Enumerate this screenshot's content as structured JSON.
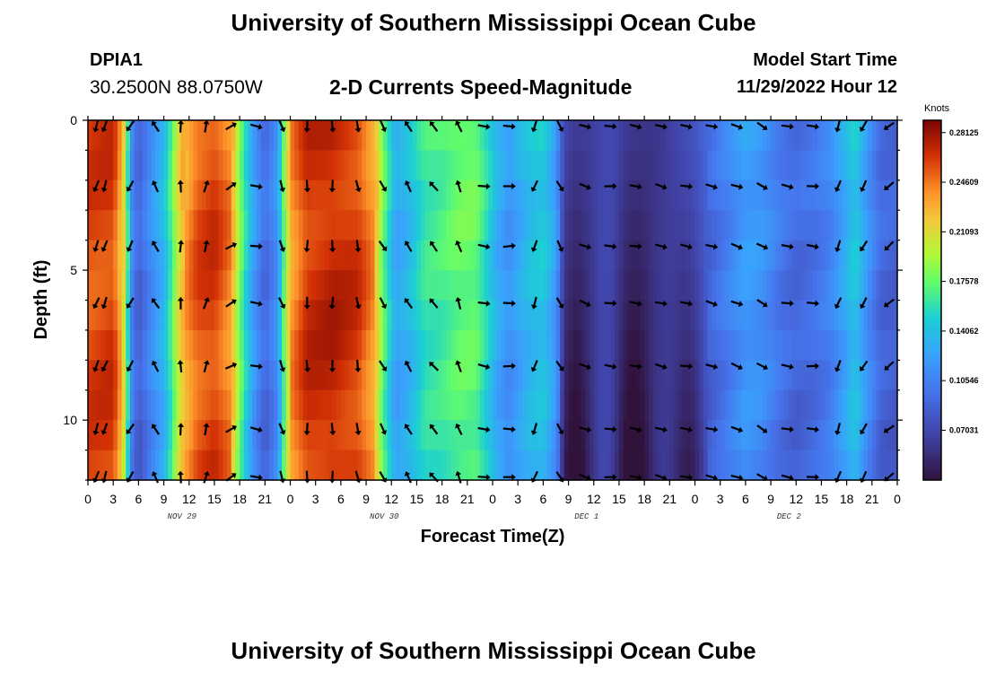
{
  "header": {
    "title": "University of Southern Mississippi Ocean Cube",
    "station_id": "DPIA1",
    "station_coords": "30.2500N  88.0750W",
    "chart_title": "2-D Currents Speed-Magnitude",
    "model_start_label": "Model Start Time",
    "model_start_value": "11/29/2022 Hour 12"
  },
  "footer": {
    "title": "University of Southern Mississippi Ocean Cube"
  },
  "chart_data": {
    "type": "heatmap",
    "title": "2-D Currents Speed-Magnitude",
    "xlabel": "Forecast Time(Z)",
    "ylabel": "Depth (ft)",
    "x_hours": [
      0,
      3,
      6,
      9,
      12,
      15,
      18,
      21,
      24,
      27,
      30,
      33,
      36,
      39,
      42,
      45,
      48,
      51,
      54,
      57,
      60,
      63,
      66,
      69,
      72,
      75,
      78,
      81,
      84,
      87,
      90,
      93,
      96
    ],
    "x_tick_labels": [
      "0",
      "3",
      "6",
      "9",
      "12",
      "15",
      "18",
      "21",
      "0",
      "3",
      "6",
      "9",
      "12",
      "15",
      "18",
      "21",
      "0",
      "3",
      "6",
      "9",
      "12",
      "15",
      "18",
      "21",
      "0",
      "3",
      "6",
      "9",
      "12",
      "15",
      "18",
      "21",
      "0"
    ],
    "day_labels": [
      {
        "hour": 12,
        "label": "NOV 29"
      },
      {
        "hour": 36,
        "label": "NOV 30"
      },
      {
        "hour": 60,
        "label": "DEC 1"
      },
      {
        "hour": 84,
        "label": "DEC 2"
      }
    ],
    "y_range": [
      0,
      12
    ],
    "y_ticks": [
      0,
      5,
      10
    ],
    "y_tick_labels": [
      "0",
      "5",
      "10"
    ],
    "colorbar": {
      "unit": "Knots",
      "tick_values": [
        0.28125,
        0.24609,
        0.21093,
        0.17578,
        0.14062,
        0.10546,
        0.07031
      ],
      "tick_labels": [
        "0.28125",
        "0.24609",
        "0.21093",
        "0.17578",
        "0.14062",
        "0.10546",
        "0.07031"
      ],
      "min": 0.035,
      "max": 0.29
    },
    "speed_profile_knots": [
      {
        "hour": 0,
        "v": 0.258
      },
      {
        "hour": 3,
        "v": 0.262
      },
      {
        "hour": 4.5,
        "v": 0.205
      },
      {
        "hour": 5,
        "v": 0.12
      },
      {
        "hour": 6,
        "v": 0.09
      },
      {
        "hour": 8,
        "v": 0.125
      },
      {
        "hour": 9,
        "v": 0.14
      },
      {
        "hour": 10,
        "v": 0.175
      },
      {
        "hour": 11,
        "v": 0.225
      },
      {
        "hour": 13,
        "v": 0.255
      },
      {
        "hour": 15,
        "v": 0.262
      },
      {
        "hour": 17,
        "v": 0.24
      },
      {
        "hour": 18,
        "v": 0.185
      },
      {
        "hour": 19.5,
        "v": 0.13
      },
      {
        "hour": 21,
        "v": 0.095
      },
      {
        "hour": 22.5,
        "v": 0.12
      },
      {
        "hour": 24,
        "v": 0.235
      },
      {
        "hour": 26,
        "v": 0.265
      },
      {
        "hour": 29,
        "v": 0.27
      },
      {
        "hour": 32,
        "v": 0.262
      },
      {
        "hour": 34,
        "v": 0.235
      },
      {
        "hour": 35,
        "v": 0.18
      },
      {
        "hour": 36.5,
        "v": 0.13
      },
      {
        "hour": 38,
        "v": 0.14
      },
      {
        "hour": 40,
        "v": 0.165
      },
      {
        "hour": 42,
        "v": 0.17
      },
      {
        "hour": 44,
        "v": 0.18
      },
      {
        "hour": 46,
        "v": 0.18
      },
      {
        "hour": 47.5,
        "v": 0.155
      },
      {
        "hour": 48.5,
        "v": 0.135
      },
      {
        "hour": 50,
        "v": 0.12
      },
      {
        "hour": 52,
        "v": 0.14
      },
      {
        "hour": 54,
        "v": 0.15
      },
      {
        "hour": 55.5,
        "v": 0.125
      },
      {
        "hour": 56.5,
        "v": 0.07
      },
      {
        "hour": 58,
        "v": 0.062
      },
      {
        "hour": 60,
        "v": 0.065
      },
      {
        "hour": 62,
        "v": 0.072
      },
      {
        "hour": 64,
        "v": 0.062
      },
      {
        "hour": 66,
        "v": 0.058
      },
      {
        "hour": 68,
        "v": 0.06
      },
      {
        "hour": 70,
        "v": 0.07
      },
      {
        "hour": 72,
        "v": 0.08
      },
      {
        "hour": 74,
        "v": 0.095
      },
      {
        "hour": 76,
        "v": 0.11
      },
      {
        "hour": 78,
        "v": 0.125
      },
      {
        "hour": 80,
        "v": 0.12
      },
      {
        "hour": 82,
        "v": 0.105
      },
      {
        "hour": 84,
        "v": 0.095
      },
      {
        "hour": 86,
        "v": 0.1
      },
      {
        "hour": 88,
        "v": 0.11
      },
      {
        "hour": 90,
        "v": 0.135
      },
      {
        "hour": 91,
        "v": 0.15
      },
      {
        "hour": 92.5,
        "v": 0.12
      },
      {
        "hour": 94,
        "v": 0.095
      },
      {
        "hour": 96,
        "v": 0.09
      }
    ],
    "vector_depths_ft": [
      0.2,
      2.2,
      4.2,
      6.1,
      8.2,
      10.3,
      11.9
    ],
    "vector_hours": [
      1,
      2,
      5,
      8,
      11,
      14,
      17,
      20,
      23,
      26,
      29,
      32,
      35,
      38,
      41,
      44,
      47,
      50,
      53,
      56,
      59,
      62,
      65,
      68,
      71,
      74,
      77,
      80,
      83,
      86,
      89,
      92,
      95
    ],
    "vector_direction_deg": [
      200,
      200,
      210,
      330,
      0,
      15,
      60,
      100,
      160,
      180,
      180,
      170,
      150,
      330,
      320,
      340,
      100,
      90,
      200,
      150,
      110,
      95,
      100,
      105,
      100,
      105,
      110,
      120,
      100,
      95,
      200,
      210,
      230
    ]
  },
  "axes": {
    "x_title": "Forecast Time(Z)",
    "y_title": "Depth (ft)"
  }
}
